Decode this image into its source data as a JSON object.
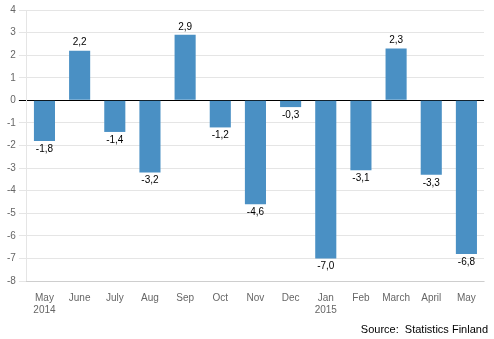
{
  "chart_data": {
    "type": "bar",
    "categories": [
      "May",
      "June",
      "July",
      "Aug",
      "Sep",
      "Oct",
      "Nov",
      "Dec",
      "Jan",
      "Feb",
      "March",
      "April",
      "May"
    ],
    "values": [
      -1.8,
      2.2,
      -1.4,
      -3.2,
      2.9,
      -1.2,
      -4.6,
      -0.3,
      -7.0,
      -3.1,
      2.3,
      -3.3,
      -6.8
    ],
    "value_labels": [
      "-1,8",
      "2,2",
      "-1,4",
      "-3,2",
      "2,9",
      "-1,2",
      "-4,6",
      "-0,3",
      "-7,0",
      "-3,1",
      "2,3",
      "-3,3",
      "-6,8"
    ],
    "data_labels": true,
    "color": "#4a90c4",
    "ylim": [
      -8,
      4
    ],
    "yticks": [
      -8,
      -7,
      -6,
      -5,
      -4,
      -3,
      -2,
      -1,
      0,
      1,
      2,
      3,
      4
    ],
    "grid": true,
    "annotations": [
      {
        "text": "2014",
        "index": 0
      },
      {
        "text": "2015",
        "index": 8
      },
      {
        "text": "Source:  Statistics Finland"
      }
    ]
  }
}
